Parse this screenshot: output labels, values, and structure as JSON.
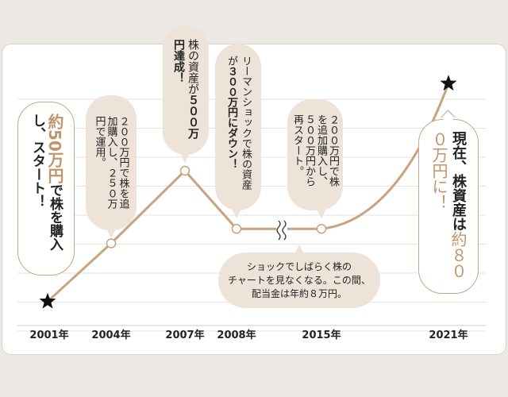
{
  "chart_data": {
    "type": "line",
    "categories": [
      "2001年",
      "2004年",
      "2007年",
      "2008年",
      "2015年",
      "2021年"
    ],
    "values": [
      50,
      250,
      500,
      300,
      500,
      800
    ],
    "unit": "万円",
    "axis_break_between": [
      "2008年",
      "2015年"
    ],
    "grid": true,
    "start_marker": "star",
    "end_marker": "star",
    "annotations": {
      "a2001_accent": "約50万円",
      "a2001_rest": "で株を購入し、スタート！",
      "a2004": "２００万円で株を追加購入し、２５０万円で運用。",
      "a2007_pre": "株の資産が",
      "a2007_bold": "５００万円達成！",
      "a2008_pre": "リーマンショックで株の資産が",
      "a2008_bold": "３００万円にダウン！",
      "a2015": "２００万円で株を追加購入し、５００万円から再スタート。",
      "gap_line1": "ショックでしばらく株の",
      "gap_line2": "チャートを見なくなる。この間、",
      "gap_line3": "配当金は年約８万円。",
      "a2021_pre": "現在、株資産は",
      "a2021_accent": "約８００万円に！"
    }
  },
  "colors": {
    "line": "#c9a27f",
    "accent": "#c2946a",
    "bubble": "#ede3d9",
    "grid": "#e6e2de",
    "background": "#ece8e4"
  }
}
